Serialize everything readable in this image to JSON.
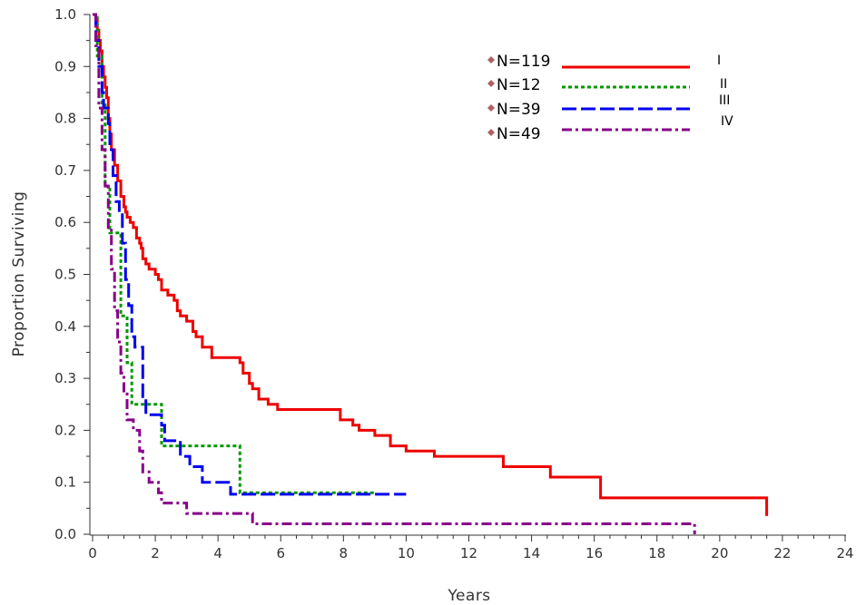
{
  "chart_data": {
    "type": "line",
    "title": "",
    "xlabel": "Years",
    "ylabel": "Proportion Surviving",
    "xlim": [
      0,
      24
    ],
    "ylim": [
      0,
      1
    ],
    "x_ticks": [
      "0",
      "2",
      "4",
      "6",
      "8",
      "10",
      "12",
      "14",
      "16",
      "18",
      "20",
      "22",
      "24"
    ],
    "y_ticks": [
      "0.0",
      "0.1",
      "0.2",
      "0.3",
      "0.4",
      "0.5",
      "0.6",
      "0.7",
      "0.8",
      "0.9",
      "1.0"
    ],
    "grid": false,
    "legend_position": "top-right",
    "series": [
      {
        "name": "I",
        "count_label": "N=119",
        "color": "#ee0000",
        "dash": "solid",
        "x": [
          0,
          0.1,
          0.15,
          0.2,
          0.25,
          0.3,
          0.35,
          0.4,
          0.45,
          0.5,
          0.55,
          0.6,
          0.7,
          0.8,
          0.9,
          1.0,
          1.05,
          1.1,
          1.2,
          1.3,
          1.4,
          1.5,
          1.55,
          1.6,
          1.7,
          1.8,
          2.0,
          2.1,
          2.2,
          2.4,
          2.6,
          2.7,
          2.8,
          3.0,
          3.2,
          3.3,
          3.5,
          3.8,
          4.7,
          4.8,
          5.0,
          5.1,
          5.3,
          5.6,
          5.9,
          7.9,
          8.3,
          8.5,
          9.0,
          9.5,
          10.0,
          10.9,
          13.1,
          14.6,
          16.2,
          21.5
        ],
        "y": [
          1.0,
          0.99,
          0.97,
          0.95,
          0.93,
          0.9,
          0.88,
          0.86,
          0.84,
          0.8,
          0.77,
          0.74,
          0.71,
          0.68,
          0.65,
          0.63,
          0.62,
          0.61,
          0.6,
          0.59,
          0.57,
          0.56,
          0.55,
          0.53,
          0.52,
          0.51,
          0.5,
          0.49,
          0.47,
          0.46,
          0.45,
          0.43,
          0.42,
          0.41,
          0.39,
          0.38,
          0.36,
          0.34,
          0.33,
          0.31,
          0.29,
          0.28,
          0.26,
          0.25,
          0.24,
          0.22,
          0.21,
          0.2,
          0.19,
          0.17,
          0.16,
          0.15,
          0.13,
          0.11,
          0.07,
          0.035
        ]
      },
      {
        "name": "II",
        "count_label": "N=12",
        "color": "#009900",
        "dash": "dotted",
        "x": [
          0,
          0.15,
          0.3,
          0.4,
          0.55,
          0.9,
          1.1,
          1.25,
          2.2,
          4.7,
          9.0
        ],
        "y": [
          1.0,
          0.92,
          0.83,
          0.67,
          0.58,
          0.42,
          0.33,
          0.25,
          0.17,
          0.08,
          0.08
        ]
      },
      {
        "name": "III",
        "count_label": "N=39",
        "color": "#0000ee",
        "dash": "dashed",
        "x": [
          0,
          0.1,
          0.2,
          0.3,
          0.35,
          0.5,
          0.55,
          0.65,
          0.75,
          0.85,
          0.95,
          1.05,
          1.15,
          1.25,
          1.35,
          1.6,
          1.7,
          2.2,
          2.3,
          2.8,
          3.1,
          3.5,
          4.4,
          10.0
        ],
        "y": [
          1.0,
          0.95,
          0.9,
          0.85,
          0.82,
          0.79,
          0.74,
          0.69,
          0.64,
          0.62,
          0.56,
          0.49,
          0.44,
          0.38,
          0.36,
          0.26,
          0.23,
          0.21,
          0.18,
          0.15,
          0.13,
          0.1,
          0.077,
          0.077
        ]
      },
      {
        "name": "IV",
        "count_label": "N=49",
        "color": "#880088",
        "dash": "dash-dot",
        "x": [
          0,
          0.1,
          0.2,
          0.3,
          0.4,
          0.5,
          0.6,
          0.7,
          0.8,
          0.9,
          1.0,
          1.1,
          1.3,
          1.5,
          1.6,
          1.8,
          2.1,
          2.2,
          3.0,
          5.1,
          19.2
        ],
        "y": [
          1.0,
          0.94,
          0.82,
          0.74,
          0.67,
          0.59,
          0.51,
          0.43,
          0.37,
          0.31,
          0.27,
          0.22,
          0.2,
          0.16,
          0.12,
          0.1,
          0.08,
          0.06,
          0.04,
          0.02,
          0.0
        ]
      }
    ]
  }
}
